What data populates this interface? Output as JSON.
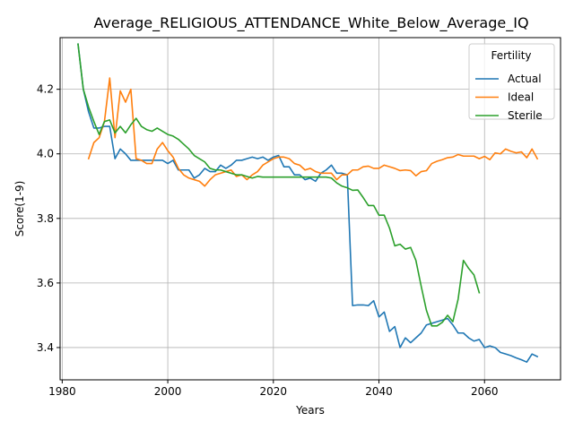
{
  "chart_data": {
    "type": "line",
    "title": "Average_RELIGIOUS_ATTENDANCE_White_Below_Average_IQ",
    "xlabel": "Years",
    "ylabel": "Score(1-9)",
    "xlim": [
      1979.6,
      2074.4
    ],
    "ylim": [
      3.3,
      4.36
    ],
    "xticks": [
      1980,
      2000,
      2020,
      2040,
      2060
    ],
    "yticks": [
      3.4,
      3.6,
      3.8,
      4.0,
      4.2
    ],
    "ytick_labels": [
      "3.4",
      "3.6",
      "3.8",
      "4.0",
      "4.2"
    ],
    "grid": true,
    "legend": {
      "title": "Fertility",
      "position": "top-right"
    },
    "series": [
      {
        "name": "Actual",
        "color": "#1f77b4",
        "points": [
          [
            1983,
            4.34
          ],
          [
            1984,
            4.2
          ],
          [
            1985,
            4.13
          ],
          [
            1986,
            4.08
          ],
          [
            1987,
            4.08
          ],
          [
            1988,
            4.085
          ],
          [
            1989,
            4.085
          ],
          [
            1990,
            3.985
          ],
          [
            1991,
            4.015
          ],
          [
            1992,
            4.0
          ],
          [
            1993,
            3.98
          ],
          [
            1994,
            3.98
          ],
          [
            1995,
            3.98
          ],
          [
            1996,
            3.98
          ],
          [
            1997,
            3.98
          ],
          [
            1998,
            3.98
          ],
          [
            1999,
            3.98
          ],
          [
            2000,
            3.97
          ],
          [
            2001,
            3.98
          ],
          [
            2002,
            3.95
          ],
          [
            2003,
            3.95
          ],
          [
            2004,
            3.95
          ],
          [
            2005,
            3.925
          ],
          [
            2006,
            3.935
          ],
          [
            2007,
            3.955
          ],
          [
            2008,
            3.945
          ],
          [
            2009,
            3.945
          ],
          [
            2010,
            3.965
          ],
          [
            2011,
            3.955
          ],
          [
            2012,
            3.965
          ],
          [
            2013,
            3.98
          ],
          [
            2014,
            3.98
          ],
          [
            2015,
            3.985
          ],
          [
            2016,
            3.99
          ],
          [
            2017,
            3.985
          ],
          [
            2018,
            3.99
          ],
          [
            2019,
            3.98
          ],
          [
            2020,
            3.99
          ],
          [
            2021,
            3.995
          ],
          [
            2022,
            3.96
          ],
          [
            2023,
            3.96
          ],
          [
            2024,
            3.935
          ],
          [
            2025,
            3.935
          ],
          [
            2026,
            3.92
          ],
          [
            2027,
            3.925
          ],
          [
            2028,
            3.915
          ],
          [
            2029,
            3.94
          ],
          [
            2030,
            3.95
          ],
          [
            2031,
            3.965
          ],
          [
            2032,
            3.94
          ],
          [
            2033,
            3.94
          ],
          [
            2034,
            3.935
          ],
          [
            2035,
            3.53
          ],
          [
            2036,
            3.532
          ],
          [
            2037,
            3.532
          ],
          [
            2038,
            3.53
          ],
          [
            2039,
            3.545
          ],
          [
            2040,
            3.495
          ],
          [
            2041,
            3.51
          ],
          [
            2042,
            3.45
          ],
          [
            2043,
            3.465
          ],
          [
            2044,
            3.4
          ],
          [
            2045,
            3.43
          ],
          [
            2046,
            3.415
          ],
          [
            2047,
            3.43
          ],
          [
            2048,
            3.445
          ],
          [
            2049,
            3.47
          ],
          [
            2050,
            3.475
          ],
          [
            2051,
            3.48
          ],
          [
            2052,
            3.485
          ],
          [
            2053,
            3.49
          ],
          [
            2054,
            3.47
          ],
          [
            2055,
            3.445
          ],
          [
            2056,
            3.445
          ],
          [
            2057,
            3.43
          ],
          [
            2058,
            3.42
          ],
          [
            2059,
            3.425
          ],
          [
            2060,
            3.4
          ],
          [
            2061,
            3.405
          ],
          [
            2062,
            3.4
          ],
          [
            2063,
            3.385
          ],
          [
            2064,
            3.38
          ],
          [
            2065,
            3.375
          ],
          [
            2066,
            3.368
          ],
          [
            2067,
            3.362
          ],
          [
            2068,
            3.355
          ],
          [
            2069,
            3.38
          ],
          [
            2070,
            3.372
          ]
        ]
      },
      {
        "name": "Ideal",
        "color": "#ff7f0e",
        "points": [
          [
            1985,
            3.985
          ],
          [
            1986,
            4.035
          ],
          [
            1987,
            4.05
          ],
          [
            1988,
            4.1
          ],
          [
            1989,
            4.235
          ],
          [
            1990,
            4.05
          ],
          [
            1991,
            4.195
          ],
          [
            1992,
            4.16
          ],
          [
            1993,
            4.2
          ],
          [
            1994,
            3.985
          ],
          [
            1995,
            3.98
          ],
          [
            1996,
            3.97
          ],
          [
            1997,
            3.97
          ],
          [
            1998,
            4.015
          ],
          [
            1999,
            4.035
          ],
          [
            2000,
            4.01
          ],
          [
            2001,
            3.99
          ],
          [
            2002,
            3.955
          ],
          [
            2003,
            3.935
          ],
          [
            2004,
            3.925
          ],
          [
            2005,
            3.92
          ],
          [
            2006,
            3.915
          ],
          [
            2007,
            3.9
          ],
          [
            2008,
            3.92
          ],
          [
            2009,
            3.935
          ],
          [
            2010,
            3.94
          ],
          [
            2011,
            3.945
          ],
          [
            2012,
            3.95
          ],
          [
            2013,
            3.93
          ],
          [
            2014,
            3.935
          ],
          [
            2015,
            3.92
          ],
          [
            2016,
            3.935
          ],
          [
            2017,
            3.945
          ],
          [
            2018,
            3.965
          ],
          [
            2019,
            3.975
          ],
          [
            2020,
            3.985
          ],
          [
            2021,
            3.99
          ],
          [
            2022,
            3.99
          ],
          [
            2023,
            3.985
          ],
          [
            2024,
            3.97
          ],
          [
            2025,
            3.965
          ],
          [
            2026,
            3.95
          ],
          [
            2027,
            3.955
          ],
          [
            2028,
            3.945
          ],
          [
            2029,
            3.94
          ],
          [
            2030,
            3.94
          ],
          [
            2031,
            3.94
          ],
          [
            2032,
            3.92
          ],
          [
            2033,
            3.935
          ],
          [
            2034,
            3.935
          ],
          [
            2035,
            3.95
          ],
          [
            2036,
            3.95
          ],
          [
            2037,
            3.96
          ],
          [
            2038,
            3.962
          ],
          [
            2039,
            3.955
          ],
          [
            2040,
            3.955
          ],
          [
            2041,
            3.965
          ],
          [
            2042,
            3.96
          ],
          [
            2043,
            3.955
          ],
          [
            2044,
            3.948
          ],
          [
            2045,
            3.95
          ],
          [
            2046,
            3.948
          ],
          [
            2047,
            3.932
          ],
          [
            2048,
            3.945
          ],
          [
            2049,
            3.948
          ],
          [
            2050,
            3.97
          ],
          [
            2051,
            3.977
          ],
          [
            2052,
            3.982
          ],
          [
            2053,
            3.988
          ],
          [
            2054,
            3.99
          ],
          [
            2055,
            3.998
          ],
          [
            2056,
            3.993
          ],
          [
            2057,
            3.993
          ],
          [
            2058,
            3.993
          ],
          [
            2059,
            3.985
          ],
          [
            2060,
            3.992
          ],
          [
            2061,
            3.982
          ],
          [
            2062,
            4.003
          ],
          [
            2063,
            4.0
          ],
          [
            2064,
            4.015
          ],
          [
            2065,
            4.008
          ],
          [
            2066,
            4.003
          ],
          [
            2067,
            4.006
          ],
          [
            2068,
            3.988
          ],
          [
            2069,
            4.015
          ],
          [
            2070,
            3.985
          ]
        ]
      },
      {
        "name": "Sterile",
        "color": "#2ca02c",
        "points": [
          [
            1983,
            4.34
          ],
          [
            1984,
            4.2
          ],
          [
            1985,
            4.145
          ],
          [
            1986,
            4.1
          ],
          [
            1987,
            4.06
          ],
          [
            1988,
            4.1
          ],
          [
            1989,
            4.105
          ],
          [
            1990,
            4.065
          ],
          [
            1991,
            4.085
          ],
          [
            1992,
            4.065
          ],
          [
            1993,
            4.09
          ],
          [
            1994,
            4.11
          ],
          [
            1995,
            4.085
          ],
          [
            1996,
            4.075
          ],
          [
            1997,
            4.07
          ],
          [
            1998,
            4.08
          ],
          [
            1999,
            4.07
          ],
          [
            2000,
            4.06
          ],
          [
            2001,
            4.055
          ],
          [
            2002,
            4.045
          ],
          [
            2003,
            4.03
          ],
          [
            2004,
            4.015
          ],
          [
            2005,
            3.995
          ],
          [
            2006,
            3.985
          ],
          [
            2007,
            3.975
          ],
          [
            2008,
            3.955
          ],
          [
            2009,
            3.95
          ],
          [
            2010,
            3.95
          ],
          [
            2011,
            3.945
          ],
          [
            2012,
            3.94
          ],
          [
            2013,
            3.935
          ],
          [
            2014,
            3.935
          ],
          [
            2015,
            3.93
          ],
          [
            2016,
            3.925
          ],
          [
            2017,
            3.93
          ],
          [
            2018,
            3.928
          ],
          [
            2019,
            3.928
          ],
          [
            2020,
            3.928
          ],
          [
            2021,
            3.928
          ],
          [
            2022,
            3.928
          ],
          [
            2023,
            3.928
          ],
          [
            2024,
            3.928
          ],
          [
            2025,
            3.928
          ],
          [
            2026,
            3.928
          ],
          [
            2027,
            3.928
          ],
          [
            2028,
            3.928
          ],
          [
            2029,
            3.928
          ],
          [
            2030,
            3.928
          ],
          [
            2031,
            3.925
          ],
          [
            2032,
            3.91
          ],
          [
            2033,
            3.9
          ],
          [
            2034,
            3.895
          ],
          [
            2035,
            3.887
          ],
          [
            2036,
            3.888
          ],
          [
            2037,
            3.865
          ],
          [
            2038,
            3.84
          ],
          [
            2039,
            3.84
          ],
          [
            2040,
            3.81
          ],
          [
            2041,
            3.81
          ],
          [
            2042,
            3.77
          ],
          [
            2043,
            3.715
          ],
          [
            2044,
            3.72
          ],
          [
            2045,
            3.705
          ],
          [
            2046,
            3.71
          ],
          [
            2047,
            3.67
          ],
          [
            2048,
            3.59
          ],
          [
            2049,
            3.515
          ],
          [
            2050,
            3.467
          ],
          [
            2051,
            3.467
          ],
          [
            2052,
            3.478
          ],
          [
            2053,
            3.5
          ],
          [
            2054,
            3.48
          ],
          [
            2055,
            3.55
          ],
          [
            2056,
            3.67
          ],
          [
            2057,
            3.645
          ],
          [
            2058,
            3.625
          ],
          [
            2059,
            3.57
          ]
        ]
      }
    ]
  }
}
